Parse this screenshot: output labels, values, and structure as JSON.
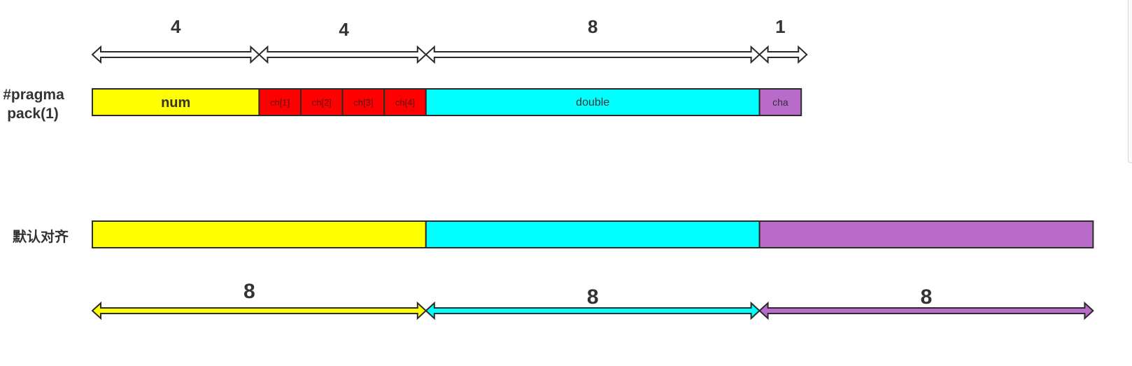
{
  "colors": {
    "outline": "#2b2b2b",
    "text": "#333333",
    "yellow": "#ffff00",
    "red": "#ff0000",
    "cyan": "#00ffff",
    "purple": "#b86bc8",
    "white": "#ffffff"
  },
  "pack1": {
    "label_line1": "#pragma",
    "label_line2": "pack(1)",
    "arrows": [
      {
        "label": "4",
        "fill": "white"
      },
      {
        "label": "4",
        "fill": "white"
      },
      {
        "label": "8",
        "fill": "white"
      },
      {
        "label": "1",
        "fill": "white"
      }
    ],
    "cells": [
      {
        "label": "num",
        "bytes": 4,
        "fill": "yellow",
        "bold": true
      },
      {
        "label": "ch[1]",
        "bytes": 1,
        "fill": "red",
        "bold": false
      },
      {
        "label": "ch[2]",
        "bytes": 1,
        "fill": "red",
        "bold": false
      },
      {
        "label": "ch[3]",
        "bytes": 1,
        "fill": "red",
        "bold": false
      },
      {
        "label": "ch[4]",
        "bytes": 1,
        "fill": "red",
        "bold": false
      },
      {
        "label": "double",
        "bytes": 8,
        "fill": "cyan",
        "bold": false
      },
      {
        "label": "cha",
        "bytes": 1,
        "fill": "purple",
        "bold": false
      }
    ]
  },
  "default_align": {
    "label": "默认对齐",
    "cells": [
      {
        "bytes": 8,
        "fill": "yellow"
      },
      {
        "bytes": 8,
        "fill": "cyan"
      },
      {
        "bytes": 8,
        "fill": "purple"
      }
    ],
    "arrows": [
      {
        "label": "8",
        "fill": "yellow"
      },
      {
        "label": "8",
        "fill": "cyan"
      },
      {
        "label": "8",
        "fill": "purple"
      }
    ]
  }
}
